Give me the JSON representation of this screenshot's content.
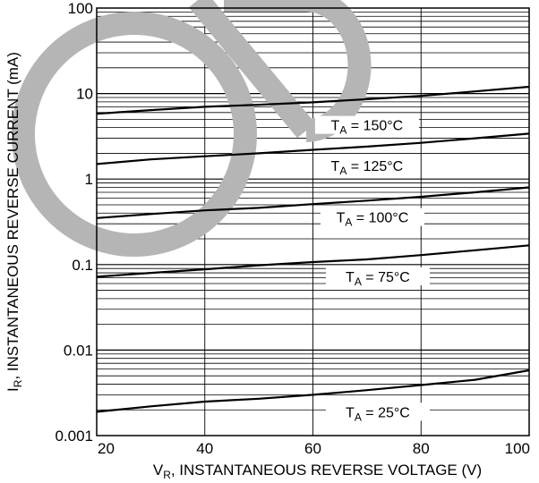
{
  "chart_data": {
    "type": "line",
    "xlabel": {
      "main": "V",
      "sub": "R",
      "rest": ", INSTANTANEOUS REVERSE VOLTAGE (V)"
    },
    "ylabel": {
      "main": "I",
      "sub": "R",
      "rest": ", INSTANTANEOUS REVERSE CURRENT (mA)"
    },
    "x_scale": "linear",
    "y_scale": "log",
    "xlim": [
      20,
      100
    ],
    "ylim": [
      0.001,
      100
    ],
    "x_ticks": [
      20,
      40,
      60,
      80,
      100
    ],
    "y_ticks": [
      {
        "value": 100,
        "label": "100"
      },
      {
        "value": 10,
        "label": "10"
      },
      {
        "value": 1,
        "label": "1"
      },
      {
        "value": 0.1,
        "label": "0.1"
      },
      {
        "value": 0.01,
        "label": "0.01"
      },
      {
        "value": 0.001,
        "label": "0.001"
      }
    ],
    "grid": true,
    "series": [
      {
        "label_main": "T",
        "label_sub": "A",
        "label_rest": " = 150°C",
        "label_at": [
          70,
          4.3
        ],
        "x": [
          20,
          30,
          40,
          50,
          60,
          70,
          80,
          90,
          100
        ],
        "y": [
          5.8,
          6.4,
          7.0,
          7.4,
          7.9,
          8.6,
          9.4,
          10.6,
          12
        ]
      },
      {
        "label_main": "T",
        "label_sub": "A",
        "label_rest": " = 125°C",
        "label_at": [
          70,
          1.45
        ],
        "x": [
          20,
          30,
          40,
          50,
          60,
          70,
          80,
          90,
          100
        ],
        "y": [
          1.5,
          1.7,
          1.85,
          2.0,
          2.2,
          2.4,
          2.65,
          3.0,
          3.4
        ]
      },
      {
        "label_main": "T",
        "label_sub": "A",
        "label_rest": " = 100°C",
        "label_at": [
          71,
          0.36
        ],
        "x": [
          20,
          30,
          40,
          50,
          60,
          70,
          80,
          90,
          100
        ],
        "y": [
          0.35,
          0.39,
          0.43,
          0.46,
          0.51,
          0.56,
          0.62,
          0.7,
          0.8
        ]
      },
      {
        "label_main": "T",
        "label_sub": "A",
        "label_rest": " = 75°C",
        "label_at": [
          72,
          0.073
        ],
        "x": [
          20,
          30,
          40,
          50,
          60,
          70,
          80,
          90,
          100
        ],
        "y": [
          0.072,
          0.08,
          0.088,
          0.098,
          0.107,
          0.115,
          0.129,
          0.147,
          0.168
        ]
      },
      {
        "label_main": "T",
        "label_sub": "A",
        "label_rest": " = 25°C",
        "label_at": [
          72,
          0.0019
        ],
        "x": [
          20,
          30,
          40,
          50,
          60,
          70,
          80,
          90,
          100
        ],
        "y": [
          0.0019,
          0.0022,
          0.0025,
          0.0027,
          0.003,
          0.0034,
          0.0039,
          0.0045,
          0.0058
        ]
      }
    ],
    "colors": {
      "curves": "#000000",
      "grid": "#000000",
      "watermark": "#b5b5b5"
    }
  }
}
